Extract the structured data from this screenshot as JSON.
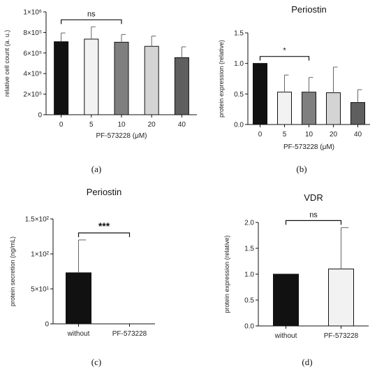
{
  "chart_data": [
    {
      "id": "a",
      "type": "bar",
      "panel_label": "(a)",
      "title": "",
      "xlabel": "PF-573228 (μM)",
      "ylabel": "relative cell count (a. u.)",
      "categories": [
        "0",
        "5",
        "10",
        "20",
        "40"
      ],
      "values": [
        710000,
        735000,
        705000,
        665000,
        555000
      ],
      "errors": [
        85000,
        120000,
        75000,
        100000,
        105000
      ],
      "bar_colors": [
        "#111111",
        "#f2f2f2",
        "#7f7f7f",
        "#d4d4d4",
        "#5f5f5f"
      ],
      "ylim": [
        0,
        1000000
      ],
      "yticks": [
        0,
        200000,
        400000,
        600000,
        800000,
        1000000
      ],
      "ytick_labels": [
        "0",
        "2×10⁵",
        "4×10⁵",
        "6×10⁵",
        "8×10⁵",
        "1×10⁶"
      ],
      "significance": [
        {
          "from": 0,
          "to": 2,
          "label": "ns"
        }
      ]
    },
    {
      "id": "b",
      "type": "bar",
      "panel_label": "(b)",
      "title": "Periostin",
      "xlabel": "PF-573228 (μM)",
      "ylabel": "protein expression (relative)",
      "categories": [
        "0",
        "5",
        "10",
        "20",
        "40"
      ],
      "values": [
        1.0,
        0.53,
        0.53,
        0.52,
        0.36
      ],
      "errors": [
        0,
        0.28,
        0.24,
        0.42,
        0.21
      ],
      "bar_colors": [
        "#111111",
        "#f2f2f2",
        "#7f7f7f",
        "#d4d4d4",
        "#5f5f5f"
      ],
      "ylim": [
        0,
        1.5
      ],
      "yticks": [
        0,
        0.5,
        1.0,
        1.5
      ],
      "ytick_labels": [
        "0.0",
        "0.5",
        "1.0",
        "1.5"
      ],
      "significance": [
        {
          "from": 0,
          "to": 2,
          "label": "*"
        }
      ]
    },
    {
      "id": "c",
      "type": "bar",
      "panel_label": "(c)",
      "title": "Periostin",
      "xlabel": "",
      "ylabel": "protein secretion (ng/mL)",
      "categories": [
        "without",
        "PF-573228"
      ],
      "values": [
        73,
        0
      ],
      "errors": [
        47,
        0
      ],
      "bar_colors": [
        "#111111",
        "#ffffff"
      ],
      "ylim": [
        0,
        150
      ],
      "yticks": [
        0,
        50,
        100,
        150
      ],
      "ytick_labels": [
        "0",
        "5×10¹",
        "1×10²",
        "1.5×10²"
      ],
      "significance": [
        {
          "from": 0,
          "to": 1,
          "label": "***"
        }
      ]
    },
    {
      "id": "d",
      "type": "bar",
      "panel_label": "(d)",
      "title": "VDR",
      "xlabel": "",
      "ylabel": "protein expression (relative)",
      "categories": [
        "without",
        "PF-573228"
      ],
      "values": [
        1.0,
        1.1
      ],
      "errors": [
        0,
        0.8
      ],
      "bar_colors": [
        "#111111",
        "#f2f2f2"
      ],
      "ylim": [
        0,
        2.0
      ],
      "yticks": [
        0,
        0.5,
        1.0,
        1.5,
        2.0
      ],
      "ytick_labels": [
        "0.0",
        "0.5",
        "1.0",
        "1.5",
        "2.0"
      ],
      "significance": [
        {
          "from": 0,
          "to": 1,
          "label": "ns"
        }
      ]
    }
  ]
}
